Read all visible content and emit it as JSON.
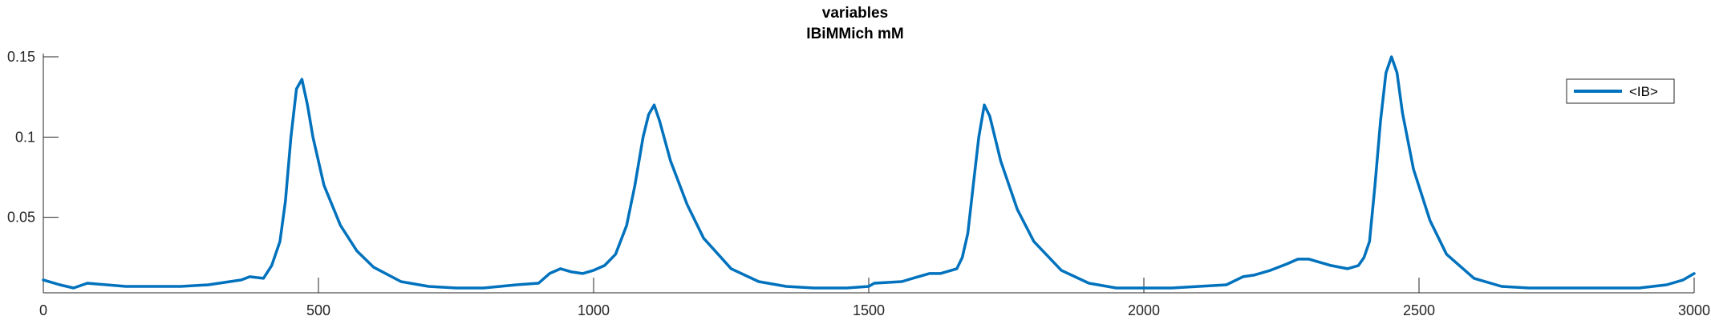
{
  "chart_data": {
    "type": "line",
    "title": "variables",
    "subtitle": "IBiMMich mM",
    "xlabel": "",
    "ylabel": "",
    "xlim": [
      0,
      3000
    ],
    "ylim": [
      0.003,
      0.152
    ],
    "grid": false,
    "legend_position": "top-right",
    "x_ticks": [
      0,
      500,
      1000,
      1500,
      2000,
      2500,
      3000
    ],
    "x_tick_labels": [
      "0",
      "500",
      "1000",
      "1500",
      "2000",
      "2500",
      "3000"
    ],
    "y_ticks": [
      0.05,
      0.1,
      0.15
    ],
    "y_tick_labels": [
      "0.05",
      "0.1",
      "0.15"
    ],
    "series": [
      {
        "name": "<IB>",
        "color": "#0072BD",
        "x": [
          0,
          30,
          55,
          80,
          150,
          250,
          300,
          360,
          375,
          400,
          415,
          430,
          440,
          450,
          460,
          470,
          480,
          490,
          510,
          540,
          570,
          600,
          650,
          700,
          750,
          800,
          830,
          860,
          900,
          920,
          940,
          960,
          980,
          1000,
          1020,
          1040,
          1060,
          1075,
          1090,
          1100,
          1110,
          1120,
          1140,
          1170,
          1200,
          1250,
          1300,
          1350,
          1400,
          1460,
          1500,
          1510,
          1560,
          1590,
          1610,
          1630,
          1660,
          1670,
          1680,
          1690,
          1700,
          1710,
          1720,
          1740,
          1770,
          1800,
          1850,
          1900,
          1950,
          2000,
          2050,
          2100,
          2150,
          2180,
          2200,
          2230,
          2260,
          2280,
          2300,
          2320,
          2340,
          2370,
          2390,
          2400,
          2410,
          2420,
          2430,
          2440,
          2450,
          2460,
          2470,
          2490,
          2520,
          2550,
          2600,
          2650,
          2700,
          2750,
          2800,
          2850,
          2900,
          2950,
          2980,
          3000
        ],
        "values": [
          0.011,
          0.008,
          0.006,
          0.009,
          0.007,
          0.007,
          0.008,
          0.011,
          0.013,
          0.012,
          0.02,
          0.035,
          0.06,
          0.1,
          0.13,
          0.136,
          0.12,
          0.1,
          0.07,
          0.045,
          0.029,
          0.019,
          0.01,
          0.007,
          0.006,
          0.006,
          0.007,
          0.008,
          0.009,
          0.015,
          0.018,
          0.016,
          0.015,
          0.017,
          0.02,
          0.027,
          0.045,
          0.07,
          0.1,
          0.114,
          0.12,
          0.11,
          0.085,
          0.058,
          0.037,
          0.018,
          0.01,
          0.007,
          0.006,
          0.006,
          0.007,
          0.009,
          0.01,
          0.013,
          0.015,
          0.015,
          0.018,
          0.025,
          0.04,
          0.07,
          0.1,
          0.12,
          0.113,
          0.085,
          0.055,
          0.035,
          0.017,
          0.009,
          0.006,
          0.006,
          0.006,
          0.007,
          0.008,
          0.013,
          0.014,
          0.017,
          0.021,
          0.024,
          0.024,
          0.022,
          0.02,
          0.018,
          0.02,
          0.025,
          0.035,
          0.07,
          0.11,
          0.14,
          0.15,
          0.14,
          0.115,
          0.08,
          0.048,
          0.027,
          0.012,
          0.007,
          0.006,
          0.006,
          0.006,
          0.006,
          0.006,
          0.008,
          0.011,
          0.015
        ]
      }
    ]
  }
}
